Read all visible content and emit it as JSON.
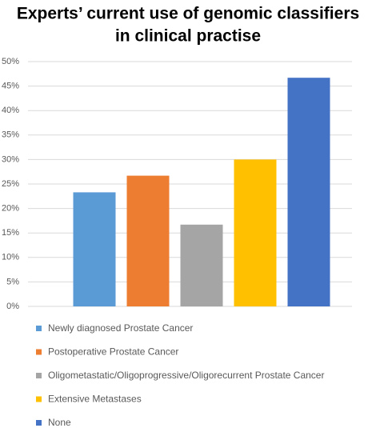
{
  "chart_data": {
    "type": "bar",
    "title": [
      "Experts’ current use of genomic classifiers",
      "in clinical practise"
    ],
    "categories": [
      null
    ],
    "series": [
      {
        "name": "Newly diagnosed Prostate Cancer",
        "color": "#5b9bd5",
        "values": [
          23.3
        ]
      },
      {
        "name": "Postoperative Prostate Cancer",
        "color": "#ed7d31",
        "values": [
          26.7
        ]
      },
      {
        "name": "Oligometastatic/Oligoprogressive/Oligorecurrent Prostate Cancer",
        "color": "#a5a5a5",
        "values": [
          16.7
        ]
      },
      {
        "name": "Extensive Metastases",
        "color": "#ffc000",
        "values": [
          30
        ]
      },
      {
        "name": "None",
        "color": "#4472c4",
        "values": [
          46.7
        ]
      }
    ],
    "ylim": [
      0,
      50
    ],
    "yticks": [
      {
        "value": 0,
        "label": "0%"
      },
      {
        "value": 5,
        "label": "5%"
      },
      {
        "value": 10,
        "label": "10%"
      },
      {
        "value": 15,
        "label": "15%"
      },
      {
        "value": 20,
        "label": "20%"
      },
      {
        "value": 25,
        "label": "25%"
      },
      {
        "value": 30,
        "label": "30%"
      },
      {
        "value": 35,
        "label": "35%"
      },
      {
        "value": 40,
        "label": "40%"
      },
      {
        "value": 45,
        "label": "45%"
      },
      {
        "value": 50,
        "label": "50%"
      }
    ],
    "grid": true,
    "legend": "bottom"
  }
}
